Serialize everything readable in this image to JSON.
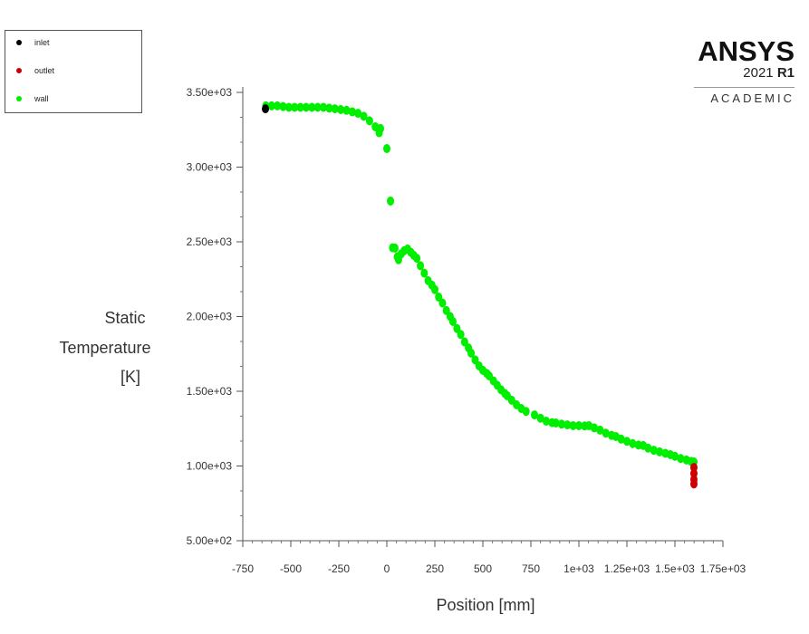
{
  "legend": {
    "items": [
      {
        "label": "inlet",
        "color": "#000000"
      },
      {
        "label": "outlet",
        "color": "#cc0000"
      },
      {
        "label": "wall",
        "color": "#00ee00"
      }
    ]
  },
  "logo": {
    "name": "ANSYS",
    "version": "2021",
    "release": "R1",
    "edition": "ACADEMIC"
  },
  "chart_data": {
    "type": "scatter",
    "title": "",
    "xlabel": "Position [mm]",
    "ylabel": "Static Temperature [K]",
    "xlim": [
      -750,
      1750
    ],
    "ylim": [
      500,
      3500
    ],
    "x_ticks": [
      "-750",
      "-500",
      "-250",
      "0",
      "250",
      "500",
      "750",
      "1e+03",
      "1.25e+03",
      "1.5e+03",
      "1.75e+03"
    ],
    "y_ticks": [
      "5.00e+02",
      "1.00e+03",
      "1.50e+03",
      "2.00e+03",
      "2.50e+03",
      "3.00e+03",
      "3.50e+03"
    ],
    "grid": false,
    "legend_position": "top-left outside",
    "series": [
      {
        "name": "inlet",
        "color": "#000000",
        "x": [
          -632
        ],
        "y": [
          3390
        ]
      },
      {
        "name": "outlet",
        "color": "#cc0000",
        "x": [
          1599,
          1599,
          1599,
          1599
        ],
        "y": [
          990,
          950,
          910,
          880
        ]
      },
      {
        "name": "wall",
        "color": "#00ee00",
        "x": [
          -630,
          -600,
          -570,
          -540,
          -510,
          -480,
          -450,
          -420,
          -390,
          -360,
          -330,
          -300,
          -270,
          -240,
          -210,
          -180,
          -150,
          -120,
          -90,
          -60,
          -40,
          -33,
          0,
          19,
          30,
          42,
          55,
          61,
          75,
          90,
          108,
          125,
          140,
          156,
          175,
          195,
          215,
          235,
          250,
          270,
          290,
          310,
          330,
          344,
          365,
          385,
          405,
          425,
          439,
          460,
          480,
          500,
          520,
          533,
          555,
          575,
          595,
          615,
          627,
          650,
          675,
          700,
          725,
          769,
          800,
          830,
          860,
          880,
          910,
          940,
          970,
          1000,
          1030,
          1052,
          1080,
          1110,
          1140,
          1170,
          1193,
          1220,
          1250,
          1280,
          1310,
          1335,
          1360,
          1390,
          1420,
          1450,
          1476,
          1500,
          1530,
          1560,
          1585,
          1599
        ],
        "y": [
          3410,
          3410,
          3410,
          3405,
          3400,
          3400,
          3400,
          3400,
          3400,
          3400,
          3400,
          3395,
          3390,
          3385,
          3380,
          3370,
          3360,
          3340,
          3310,
          3270,
          3230,
          3258,
          3124,
          2773,
          2460,
          2458,
          2400,
          2380,
          2420,
          2440,
          2452,
          2430,
          2410,
          2390,
          2340,
          2290,
          2240,
          2210,
          2180,
          2130,
          2090,
          2040,
          2000,
          1967,
          1920,
          1880,
          1830,
          1790,
          1755,
          1710,
          1670,
          1640,
          1620,
          1603,
          1570,
          1540,
          1510,
          1485,
          1470,
          1440,
          1410,
          1385,
          1365,
          1342,
          1320,
          1300,
          1290,
          1288,
          1280,
          1275,
          1270,
          1270,
          1268,
          1270,
          1255,
          1240,
          1220,
          1205,
          1197,
          1180,
          1165,
          1150,
          1140,
          1137,
          1120,
          1105,
          1095,
          1085,
          1076,
          1065,
          1050,
          1040,
          1030,
          1027
        ]
      }
    ]
  }
}
